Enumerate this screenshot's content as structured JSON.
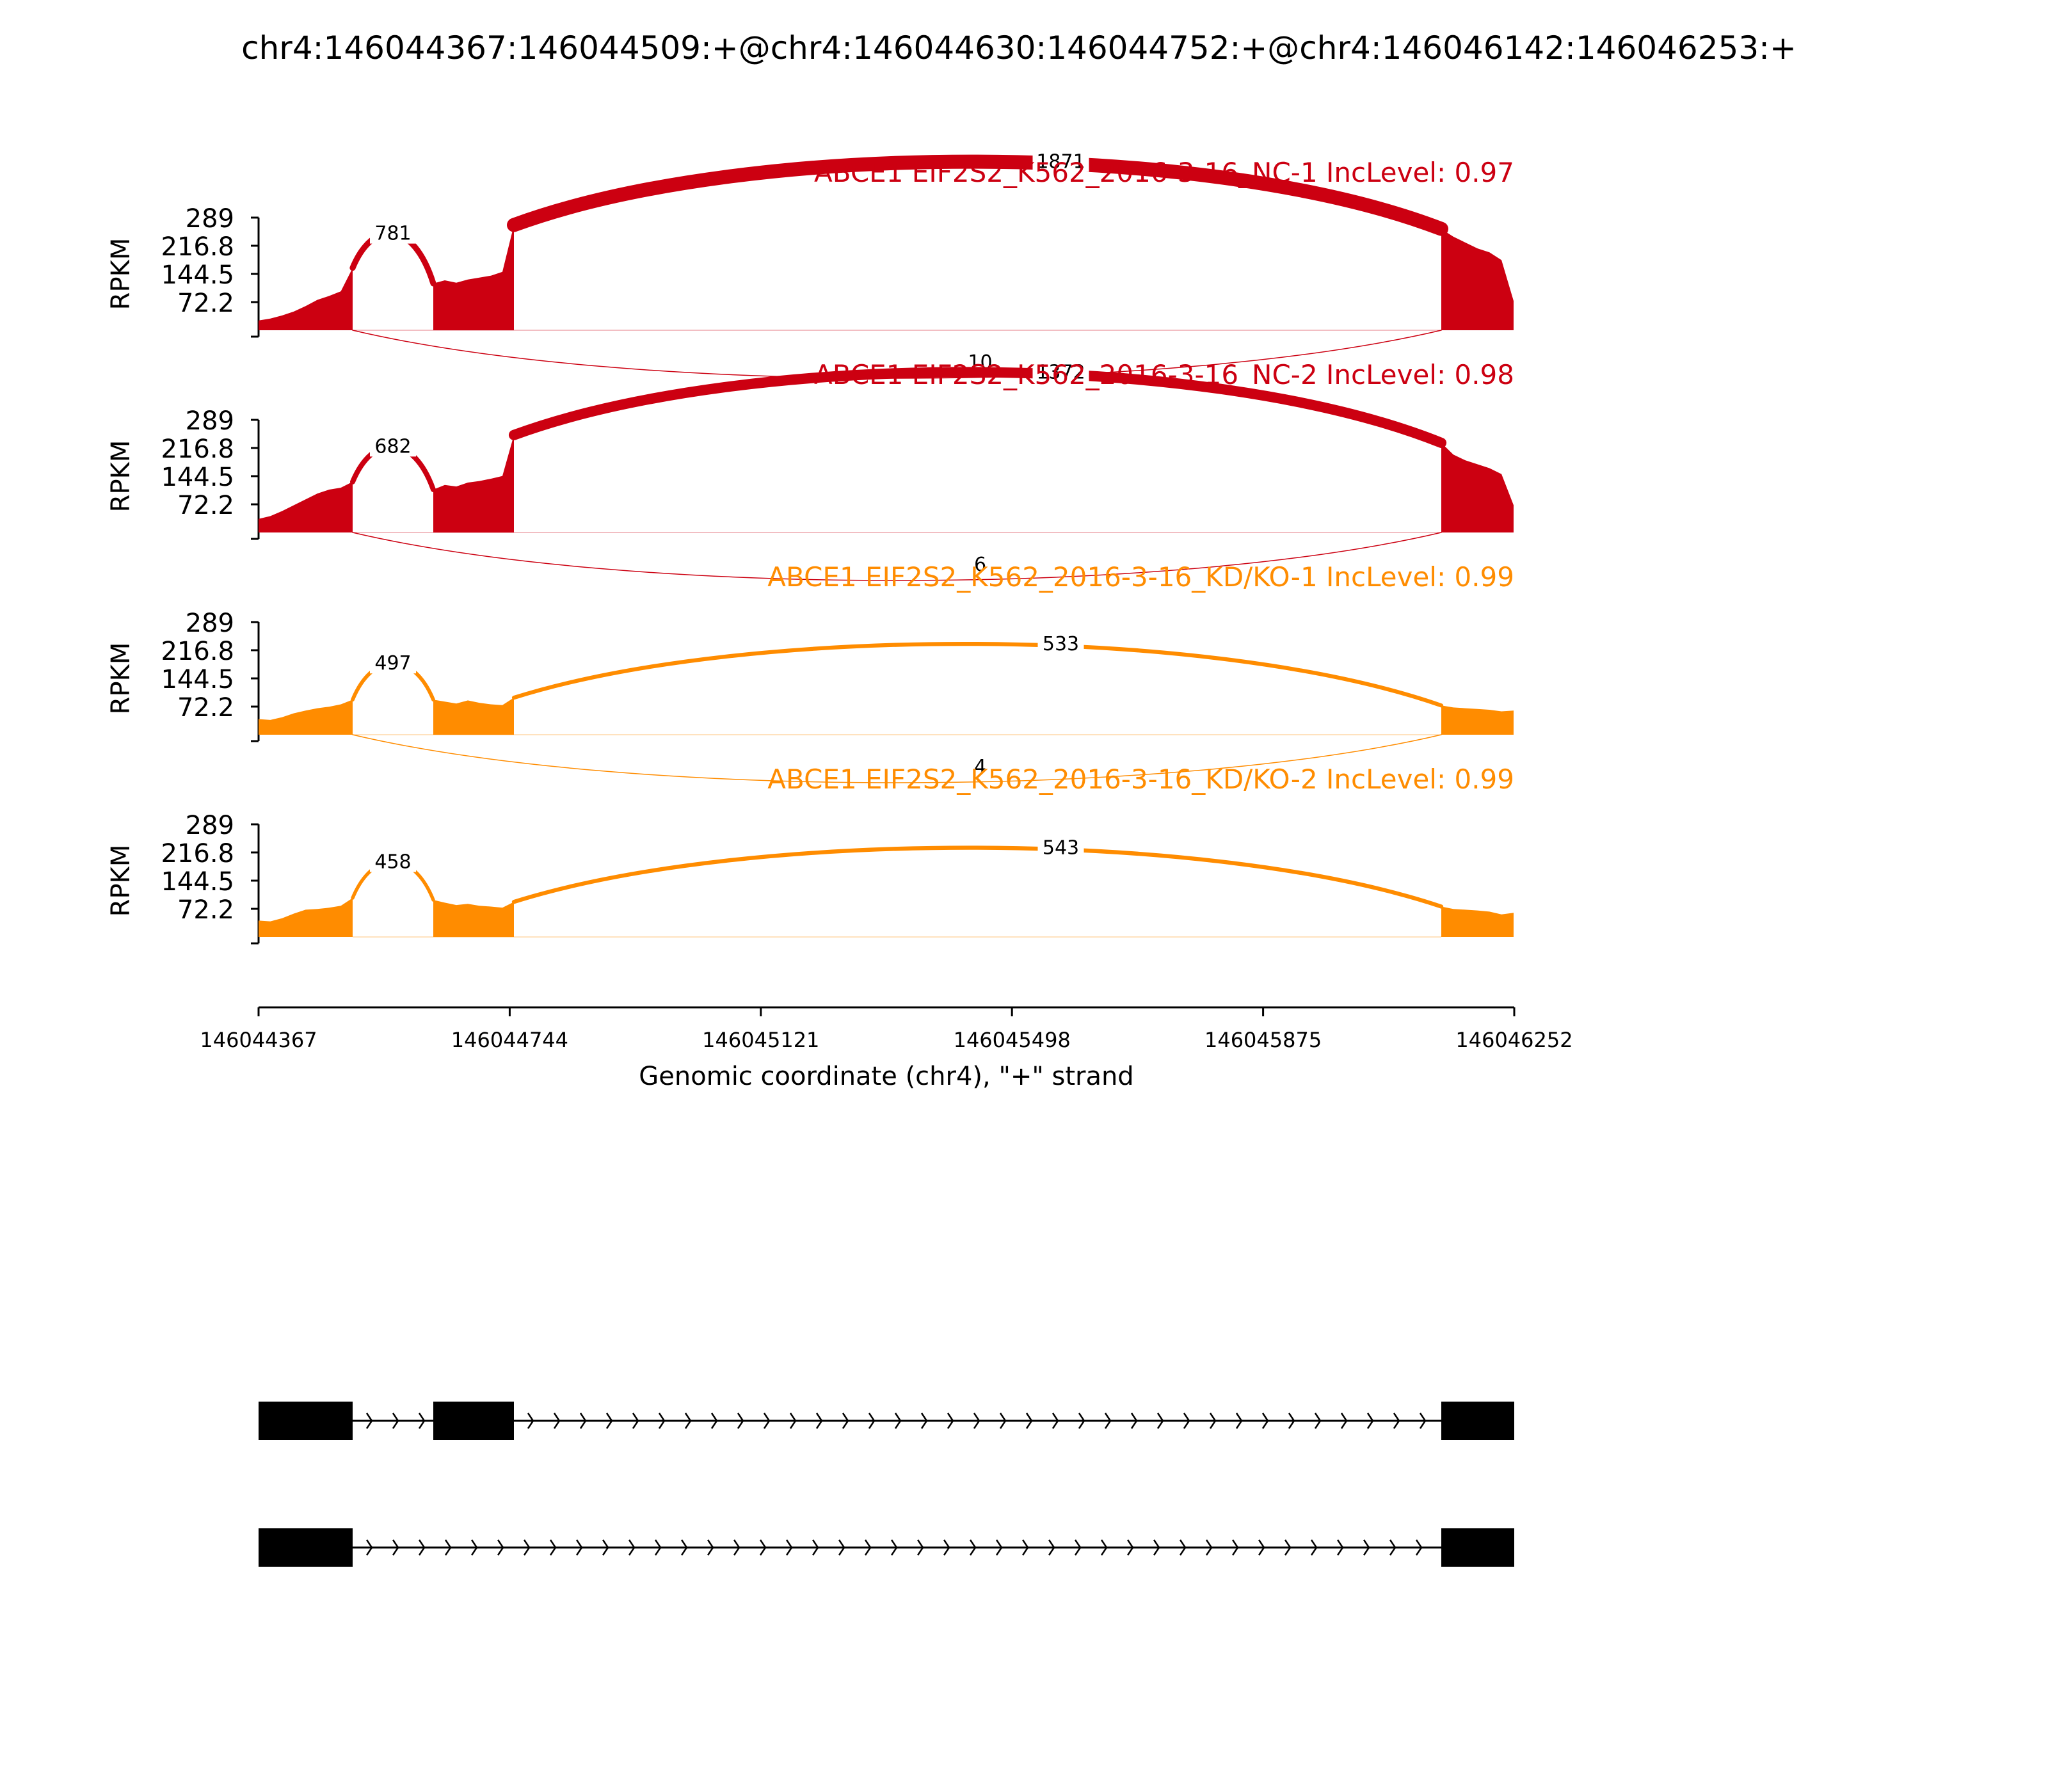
{
  "title": "chr4:146044367:146044509:+@chr4:146044630:146044752:+@chr4:146046142:146046253:+",
  "colors": {
    "nc": "#cc0011",
    "kd": "#ff8c00",
    "axis": "#000000",
    "gene": "#000000"
  },
  "chart_data": {
    "type": "area",
    "description_type": "sashimi",
    "title": "chr4:146044367:146044509:+@chr4:146044630:146044752:+@chr4:146046142:146046253:+",
    "ylabel": "RPKM",
    "xlabel": "Genomic coordinate (chr4), \"+\" strand",
    "xlim": [
      146044367,
      146046252
    ],
    "x_ticks": [
      "146044367",
      "146044744",
      "146045121",
      "146045498",
      "146045875",
      "146046252"
    ],
    "x_tick_values": [
      146044367,
      146044744,
      146045121,
      146045498,
      146045875,
      146046252
    ],
    "ylim": [
      0,
      289
    ],
    "y_ticks": [
      "289",
      "216.8",
      "144.5",
      "72.2"
    ],
    "y_tick_values": [
      289,
      216.8,
      144.5,
      72.2
    ],
    "exons": [
      [
        146044367,
        146044509
      ],
      [
        146044630,
        146044752
      ],
      [
        146046142,
        146046253
      ]
    ],
    "series": [
      {
        "name": "ABCE1 EIF2S2_K562_2016-3-16_NC-1 IncLevel: 0.97",
        "color": "#cc0011",
        "coverage": [
          {
            "exon": 0,
            "values": [
              25,
              30,
              38,
              48,
              62,
              78,
              88,
              100,
              160
            ]
          },
          {
            "exon": 1,
            "values": [
              120,
              128,
              122,
              130,
              135,
              140,
              150,
              270
            ]
          },
          {
            "exon": 2,
            "values": [
              260,
              240,
              225,
              210,
              200,
              180,
              75
            ]
          }
        ],
        "junctions": [
          {
            "from": 146044509,
            "to": 146044630,
            "count": "781",
            "side": "above"
          },
          {
            "from": 146044752,
            "to": 146046142,
            "count": "1871",
            "side": "above"
          },
          {
            "from": 146044509,
            "to": 146046142,
            "count": "10",
            "side": "below"
          }
        ]
      },
      {
        "name": "ABCE1 EIF2S2_K562_2016-3-16_NC-2 IncLevel: 0.98",
        "color": "#cc0011",
        "coverage": [
          {
            "exon": 0,
            "values": [
              35,
              42,
              55,
              70,
              85,
              100,
              110,
              115,
              130
            ]
          },
          {
            "exon": 1,
            "values": [
              110,
              122,
              118,
              128,
              132,
              138,
              145,
              250
            ]
          },
          {
            "exon": 2,
            "values": [
              230,
              200,
              185,
              175,
              165,
              150,
              70
            ]
          }
        ],
        "junctions": [
          {
            "from": 146044509,
            "to": 146044630,
            "count": "682",
            "side": "above"
          },
          {
            "from": 146044752,
            "to": 146046142,
            "count": "1372",
            "side": "above"
          },
          {
            "from": 146044509,
            "to": 146046142,
            "count": "6",
            "side": "below"
          }
        ]
      },
      {
        "name": "ABCE1 EIF2S2_K562_2016-3-16_KD/KO-1 IncLevel: 0.99",
        "color": "#ff8c00",
        "coverage": [
          {
            "exon": 0,
            "values": [
              40,
              38,
              45,
              55,
              62,
              68,
              72,
              78,
              90
            ]
          },
          {
            "exon": 1,
            "values": [
              90,
              85,
              80,
              88,
              82,
              78,
              76,
              95
            ]
          },
          {
            "exon": 2,
            "values": [
              75,
              70,
              68,
              66,
              64,
              60,
              62
            ]
          }
        ],
        "junctions": [
          {
            "from": 146044509,
            "to": 146044630,
            "count": "497",
            "side": "above"
          },
          {
            "from": 146044752,
            "to": 146046142,
            "count": "533",
            "side": "above"
          },
          {
            "from": 146044509,
            "to": 146046142,
            "count": "4",
            "side": "below"
          }
        ]
      },
      {
        "name": "ABCE1 EIF2S2_K562_2016-3-16_KD/KO-2 IncLevel: 0.99",
        "color": "#ff8c00",
        "coverage": [
          {
            "exon": 0,
            "values": [
              42,
              40,
              48,
              60,
              70,
              72,
              75,
              80,
              100
            ]
          },
          {
            "exon": 1,
            "values": [
              95,
              88,
              82,
              85,
              80,
              78,
              75,
              90
            ]
          },
          {
            "exon": 2,
            "values": [
              78,
              72,
              70,
              68,
              65,
              58,
              62
            ]
          }
        ],
        "junctions": [
          {
            "from": 146044509,
            "to": 146044630,
            "count": "458",
            "side": "above"
          },
          {
            "from": 146044752,
            "to": 146046142,
            "count": "543",
            "side": "above"
          }
        ]
      }
    ],
    "isoforms": [
      {
        "exons": [
          [
            146044367,
            146044509
          ],
          [
            146044630,
            146044752
          ],
          [
            146046142,
            146046253
          ]
        ]
      },
      {
        "exons": [
          [
            146044367,
            146044509
          ],
          [
            146046142,
            146046253
          ]
        ]
      }
    ]
  }
}
